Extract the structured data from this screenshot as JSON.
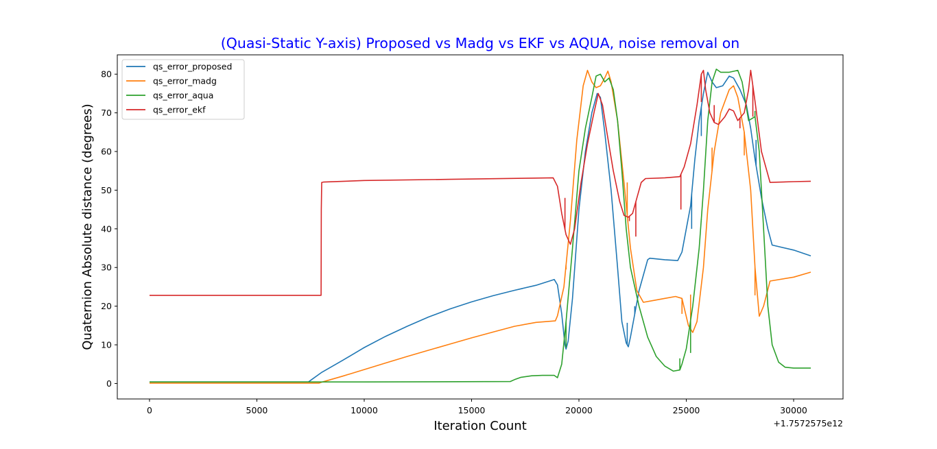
{
  "chart_data": {
    "type": "line",
    "title": "(Quasi-Static Y-axis) Proposed vs Madg vs EKF vs AQUA, noise removal on",
    "title_color": "#0000ff",
    "xlabel": "Iteration Count",
    "ylabel": "Quaternion Absolute distance (degrees)",
    "x_offset_text": "+1.7572575e12",
    "xlim": [
      -1500,
      32300
    ],
    "ylim": [
      -4,
      85
    ],
    "x_ticks": [
      0,
      5000,
      10000,
      15000,
      20000,
      25000,
      30000
    ],
    "x_tick_labels": [
      "0",
      "5000",
      "10000",
      "15000",
      "20000",
      "25000",
      "30000"
    ],
    "y_ticks": [
      0,
      10,
      20,
      30,
      40,
      50,
      60,
      70,
      80
    ],
    "y_tick_labels": [
      "0",
      "10",
      "20",
      "30",
      "40",
      "50",
      "60",
      "70",
      "80"
    ],
    "grid": false,
    "legend_position": "upper-left",
    "series": [
      {
        "name": "qs_error_proposed",
        "color": "#1f77b4",
        "points": [
          [
            0,
            0.4
          ],
          [
            7400,
            0.4
          ],
          [
            7600,
            1.2
          ],
          [
            8000,
            2.8
          ],
          [
            9000,
            6
          ],
          [
            10000,
            9.3
          ],
          [
            11000,
            12.2
          ],
          [
            12000,
            14.8
          ],
          [
            13000,
            17.2
          ],
          [
            14000,
            19.3
          ],
          [
            15000,
            21.1
          ],
          [
            16000,
            22.7
          ],
          [
            17000,
            24.1
          ],
          [
            18000,
            25.4
          ],
          [
            18850,
            26.9
          ],
          [
            19000,
            25.5
          ],
          [
            19200,
            18
          ],
          [
            19350,
            10
          ],
          [
            19400,
            8.9
          ],
          [
            19500,
            11
          ],
          [
            19700,
            22
          ],
          [
            20000,
            45
          ],
          [
            20300,
            60
          ],
          [
            20600,
            70
          ],
          [
            20850,
            75
          ],
          [
            21000,
            74
          ],
          [
            21200,
            65
          ],
          [
            21500,
            50
          ],
          [
            21800,
            30
          ],
          [
            22000,
            16
          ],
          [
            22200,
            10.5
          ],
          [
            22300,
            9.5
          ],
          [
            22400,
            12
          ],
          [
            22600,
            18
          ],
          [
            22800,
            24
          ],
          [
            23000,
            28
          ],
          [
            23200,
            32
          ],
          [
            23300,
            32.4
          ],
          [
            24000,
            32
          ],
          [
            24600,
            31.8
          ],
          [
            24800,
            34
          ],
          [
            25000,
            40
          ],
          [
            25200,
            46
          ],
          [
            25400,
            58
          ],
          [
            25600,
            68
          ],
          [
            25800,
            75
          ],
          [
            26000,
            80.5
          ],
          [
            26200,
            78
          ],
          [
            26400,
            76.5
          ],
          [
            26700,
            77
          ],
          [
            27000,
            79.5
          ],
          [
            27200,
            79
          ],
          [
            27500,
            76
          ],
          [
            27800,
            72
          ],
          [
            28000,
            66
          ],
          [
            28200,
            58
          ],
          [
            28500,
            48
          ],
          [
            28800,
            40
          ],
          [
            29000,
            35.8
          ],
          [
            30000,
            34.5
          ],
          [
            30800,
            33
          ]
        ],
        "spikes": [
          [
            22250,
            15.7
          ],
          [
            22600,
            20
          ],
          [
            25250,
            40
          ],
          [
            25700,
            64
          ],
          [
            28250,
            63
          ]
        ]
      },
      {
        "name": "qs_error_madg",
        "color": "#ff7f0e",
        "points": [
          [
            0,
            0.1
          ],
          [
            7900,
            0.1
          ],
          [
            8000,
            0.3
          ],
          [
            9000,
            1.9
          ],
          [
            10000,
            3.6
          ],
          [
            11000,
            5.3
          ],
          [
            12000,
            7
          ],
          [
            13000,
            8.6
          ],
          [
            14000,
            10.2
          ],
          [
            15000,
            11.8
          ],
          [
            16000,
            13.3
          ],
          [
            17000,
            14.8
          ],
          [
            18000,
            15.8
          ],
          [
            18900,
            16.2
          ],
          [
            19000,
            17.5
          ],
          [
            19300,
            25
          ],
          [
            19600,
            42
          ],
          [
            19900,
            63
          ],
          [
            20200,
            77
          ],
          [
            20400,
            81
          ],
          [
            20600,
            78
          ],
          [
            20800,
            76.5
          ],
          [
            21000,
            77
          ],
          [
            21200,
            79
          ],
          [
            21350,
            80.8
          ],
          [
            21500,
            78
          ],
          [
            21800,
            68
          ],
          [
            22100,
            52
          ],
          [
            22400,
            35
          ],
          [
            22700,
            24
          ],
          [
            23000,
            21
          ],
          [
            23500,
            21.5
          ],
          [
            24000,
            22
          ],
          [
            24500,
            22.5
          ],
          [
            24800,
            22
          ],
          [
            25100,
            15
          ],
          [
            25300,
            13.2
          ],
          [
            25500,
            16
          ],
          [
            25800,
            30
          ],
          [
            26000,
            45
          ],
          [
            26300,
            60
          ],
          [
            26600,
            70
          ],
          [
            27000,
            76
          ],
          [
            27200,
            77
          ],
          [
            27400,
            74
          ],
          [
            27700,
            65
          ],
          [
            28000,
            50
          ],
          [
            28200,
            30
          ],
          [
            28400,
            17.4
          ],
          [
            28600,
            20
          ],
          [
            28900,
            26.5
          ],
          [
            30000,
            27.5
          ],
          [
            30800,
            28.8
          ]
        ],
        "spikes": [
          [
            19400,
            29.5
          ],
          [
            22250,
            52
          ],
          [
            24800,
            18
          ],
          [
            25200,
            23
          ],
          [
            26200,
            61
          ],
          [
            27700,
            59
          ],
          [
            28200,
            22.8
          ]
        ]
      },
      {
        "name": "qs_error_aqua",
        "color": "#2ca02c",
        "points": [
          [
            0,
            0.4
          ],
          [
            10000,
            0.4
          ],
          [
            16800,
            0.5
          ],
          [
            17000,
            1
          ],
          [
            17300,
            1.6
          ],
          [
            17800,
            2
          ],
          [
            18300,
            2.1
          ],
          [
            18850,
            2.1
          ],
          [
            19000,
            1.5
          ],
          [
            19200,
            5
          ],
          [
            19400,
            16
          ],
          [
            19700,
            35
          ],
          [
            20000,
            55
          ],
          [
            20300,
            66
          ],
          [
            20600,
            74
          ],
          [
            20800,
            79.5
          ],
          [
            21000,
            80
          ],
          [
            21200,
            78
          ],
          [
            21400,
            79
          ],
          [
            21600,
            76
          ],
          [
            21800,
            68
          ],
          [
            22000,
            55
          ],
          [
            22200,
            40
          ],
          [
            22400,
            30
          ],
          [
            22800,
            20
          ],
          [
            23200,
            12
          ],
          [
            23600,
            7
          ],
          [
            24000,
            4.5
          ],
          [
            24400,
            3.2
          ],
          [
            24700,
            3.5
          ],
          [
            24800,
            5
          ],
          [
            25000,
            9
          ],
          [
            25300,
            20
          ],
          [
            25600,
            35
          ],
          [
            25800,
            50
          ],
          [
            26000,
            68
          ],
          [
            26200,
            78
          ],
          [
            26400,
            81.3
          ],
          [
            26600,
            80.5
          ],
          [
            27000,
            80.5
          ],
          [
            27400,
            81
          ],
          [
            27600,
            78
          ],
          [
            27900,
            68
          ],
          [
            28200,
            69
          ],
          [
            28400,
            60
          ],
          [
            28600,
            40
          ],
          [
            28800,
            20
          ],
          [
            29000,
            10
          ],
          [
            29300,
            5.5
          ],
          [
            29600,
            4.2
          ],
          [
            30000,
            4
          ],
          [
            30800,
            4
          ]
        ],
        "spikes": [
          [
            19400,
            9.3
          ],
          [
            24700,
            6.5
          ],
          [
            25200,
            7.9
          ],
          [
            25700,
            42.3
          ],
          [
            28200,
            70.5
          ]
        ]
      },
      {
        "name": "qs_error_ekf",
        "color": "#d62728",
        "points": [
          [
            0,
            22.8
          ],
          [
            7990,
            22.8
          ],
          [
            8000,
            45
          ],
          [
            8020,
            52
          ],
          [
            8100,
            52.1
          ],
          [
            10000,
            52.5
          ],
          [
            14000,
            52.8
          ],
          [
            18800,
            53.2
          ],
          [
            19000,
            51
          ],
          [
            19200,
            44
          ],
          [
            19400,
            38.5
          ],
          [
            19600,
            36
          ],
          [
            19800,
            40
          ],
          [
            20100,
            52
          ],
          [
            20400,
            62
          ],
          [
            20700,
            70
          ],
          [
            20900,
            75
          ],
          [
            21100,
            72
          ],
          [
            21300,
            65
          ],
          [
            21600,
            55
          ],
          [
            21900,
            47
          ],
          [
            22100,
            43.5
          ],
          [
            22300,
            43
          ],
          [
            22500,
            44
          ],
          [
            22700,
            48
          ],
          [
            22900,
            52
          ],
          [
            23100,
            53
          ],
          [
            24000,
            53.2
          ],
          [
            24700,
            53.5
          ],
          [
            24900,
            56
          ],
          [
            25200,
            62
          ],
          [
            25500,
            72
          ],
          [
            25700,
            80
          ],
          [
            25800,
            81
          ],
          [
            25900,
            76
          ],
          [
            26100,
            70
          ],
          [
            26300,
            67.5
          ],
          [
            26500,
            67
          ],
          [
            26800,
            69
          ],
          [
            27000,
            71
          ],
          [
            27200,
            70.5
          ],
          [
            27400,
            68
          ],
          [
            27700,
            70
          ],
          [
            27900,
            76
          ],
          [
            28000,
            81
          ],
          [
            28200,
            73
          ],
          [
            28500,
            60
          ],
          [
            28900,
            52
          ],
          [
            30000,
            52.2
          ],
          [
            30800,
            52.3
          ]
        ],
        "spikes": [
          [
            19350,
            48
          ],
          [
            22350,
            42
          ],
          [
            22650,
            38
          ],
          [
            24750,
            45
          ],
          [
            25700,
            72.8
          ],
          [
            26300,
            72
          ],
          [
            27500,
            66
          ],
          [
            28100,
            69
          ]
        ]
      }
    ]
  }
}
